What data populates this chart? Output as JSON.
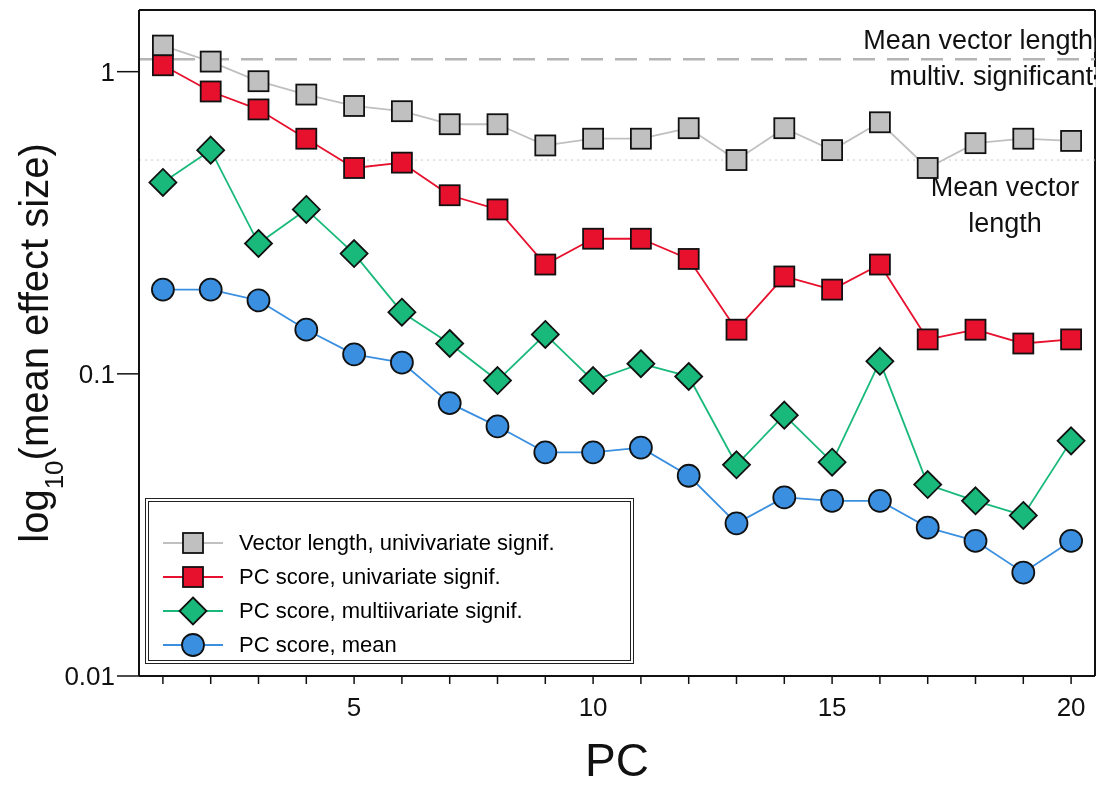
{
  "chart_data": {
    "type": "line",
    "xlabel": "PC",
    "ylabel": "log$_{10}$(mean effect size)",
    "log": "y",
    "xlim": [
      0.5,
      20.5
    ],
    "xticks": [
      {
        "value": 1,
        "label": null
      },
      {
        "value": 2,
        "label": null
      },
      {
        "value": 3,
        "label": null
      },
      {
        "value": 4,
        "label": null
      },
      5,
      {
        "value": 6,
        "label": null
      },
      {
        "value": 7,
        "label": null
      },
      {
        "value": 8,
        "label": null
      },
      {
        "value": 9,
        "label": null
      },
      10,
      {
        "value": 11,
        "label": null
      },
      {
        "value": 12,
        "label": null
      },
      {
        "value": 13,
        "label": null
      },
      {
        "value": 14,
        "label": null
      },
      15,
      {
        "value": 16,
        "label": null
      },
      {
        "value": 17,
        "label": null
      },
      {
        "value": 18,
        "label": null
      },
      {
        "value": 19,
        "label": null
      },
      20
    ],
    "ylim": [
      0.01,
      1.6
    ],
    "yticks": [
      0.01,
      0.1,
      1
    ],
    "legend": "bottom left",
    "x": [
      1,
      2,
      3,
      4,
      5,
      6,
      7,
      8,
      9,
      10,
      11,
      12,
      13,
      14,
      15,
      16,
      17,
      18,
      19,
      20
    ],
    "series": [
      {
        "name": "Vector length, univivariate signif.",
        "color": "#c0c0c0",
        "marker": "square",
        "values": [
          1.22,
          1.08,
          0.93,
          0.84,
          0.77,
          0.74,
          0.67,
          0.67,
          0.57,
          0.6,
          0.6,
          0.65,
          0.51,
          0.65,
          0.55,
          0.68,
          0.48,
          0.58,
          0.6,
          0.59
        ]
      },
      {
        "name": "PC score, univariate signif.",
        "color": "#e8112d",
        "marker": "square",
        "values": [
          1.05,
          0.86,
          0.75,
          0.6,
          0.48,
          0.5,
          0.39,
          0.35,
          0.23,
          0.28,
          0.28,
          0.24,
          0.14,
          0.21,
          0.19,
          0.23,
          0.13,
          0.14,
          0.126,
          0.13
        ]
      },
      {
        "name": "PC score, multiivariate signif.",
        "color": "#19b97b",
        "marker": "diamond",
        "values": [
          0.43,
          0.55,
          0.27,
          0.35,
          0.25,
          0.16,
          0.126,
          0.095,
          0.135,
          0.095,
          0.108,
          0.098,
          0.05,
          0.073,
          0.051,
          0.11,
          0.043,
          0.038,
          0.034,
          0.06
        ]
      },
      {
        "name": "PC score, mean",
        "color": "#3a8fe0",
        "marker": "circle",
        "values": [
          0.19,
          0.19,
          0.175,
          0.14,
          0.116,
          0.109,
          0.08,
          0.067,
          0.055,
          0.055,
          0.057,
          0.046,
          0.032,
          0.039,
          0.038,
          0.038,
          0.031,
          0.028,
          0.022,
          0.028
        ]
      }
    ],
    "ref_lines": [
      {
        "axis": "y",
        "value": 1.1,
        "label": "Mean vector length\nmultiv. significant",
        "color": "#b4b4b4",
        "line_style": "dashed"
      },
      {
        "axis": "y",
        "value": 0.51,
        "label": "Mean vector\nlength",
        "color": "#c8c8c8",
        "line_style": "dotted"
      }
    ]
  }
}
